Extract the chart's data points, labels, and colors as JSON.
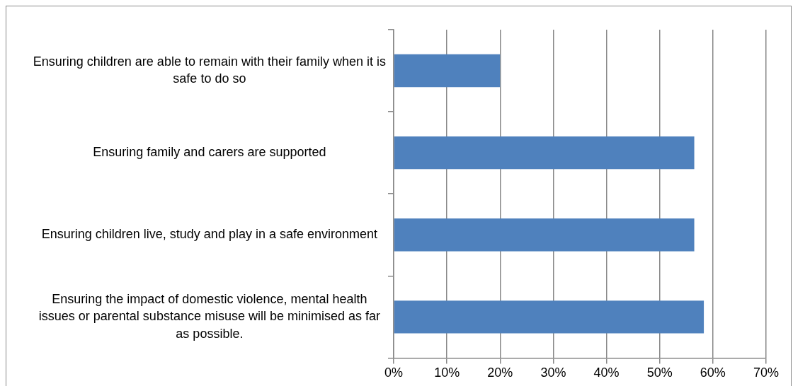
{
  "chart_data": {
    "type": "bar",
    "orientation": "horizontal",
    "categories": [
      "Ensuring children are able to remain with their family when it is safe to do so",
      "Ensuring family and carers are supported",
      "Ensuring children live, study and play in a safe environment",
      "Ensuring the impact of domestic violence, mental health issues or parental substance misuse will be minimised as far as possible."
    ],
    "values": [
      20,
      56.5,
      56.5,
      58.3
    ],
    "color": "#4f81bd",
    "xlim": [
      0,
      70
    ],
    "xticks": [
      {
        "value": 0,
        "label": "0%"
      },
      {
        "value": 10,
        "label": "10%"
      },
      {
        "value": 20,
        "label": "20%"
      },
      {
        "value": 30,
        "label": "30%"
      },
      {
        "value": 40,
        "label": "40%"
      },
      {
        "value": 50,
        "label": "50%"
      },
      {
        "value": 60,
        "label": "60%"
      },
      {
        "value": 70,
        "label": "70%"
      }
    ],
    "grid": "x",
    "legend": false
  }
}
